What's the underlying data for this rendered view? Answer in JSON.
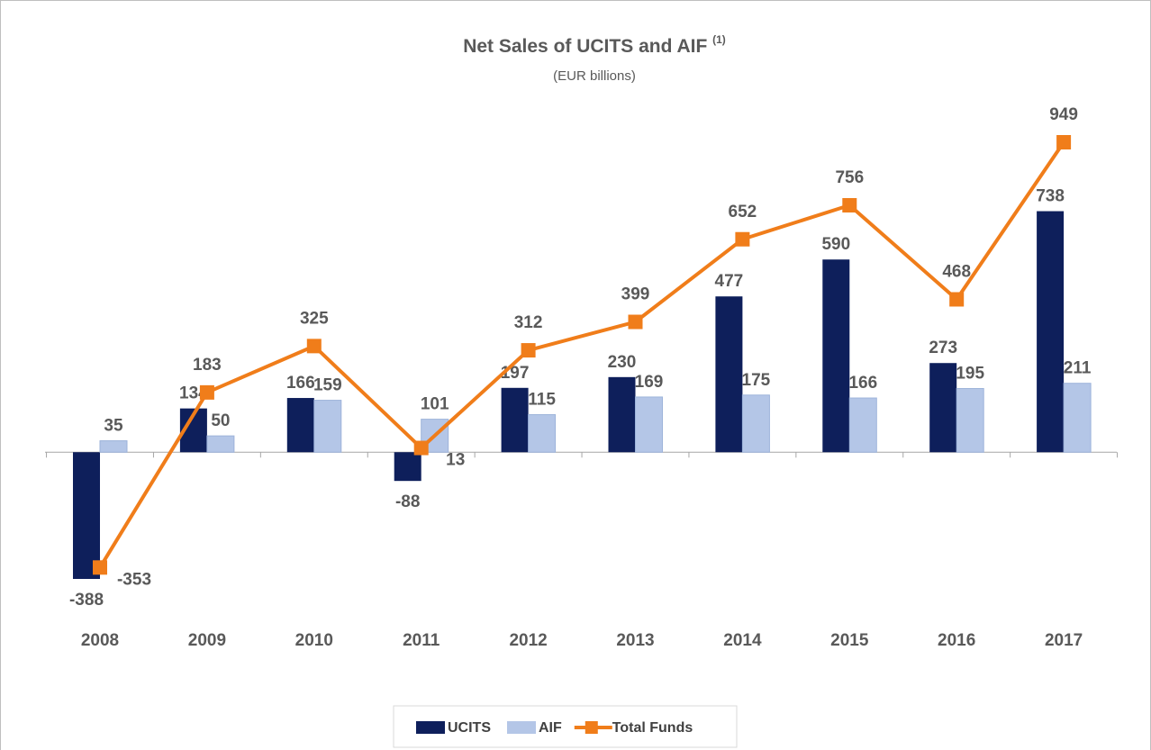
{
  "chart_data": {
    "type": "bar_line",
    "title": "Net Sales of UCITS and AIF",
    "title_note": "(1)",
    "subtitle": "(EUR billions)",
    "categories": [
      "2008",
      "2009",
      "2010",
      "2011",
      "2012",
      "2013",
      "2014",
      "2015",
      "2016",
      "2017"
    ],
    "series": [
      {
        "name": "UCITS",
        "color": "#0e1f5b",
        "kind": "bar",
        "values": [
          -388,
          134,
          166,
          -88,
          197,
          230,
          477,
          590,
          273,
          738
        ]
      },
      {
        "name": "AIF",
        "color": "#b4c6e7",
        "kind": "bar",
        "values": [
          35,
          50,
          159,
          101,
          115,
          169,
          175,
          166,
          195,
          211
        ]
      },
      {
        "name": "Total Funds",
        "color": "#f07d1a",
        "kind": "line",
        "values": [
          -353,
          183,
          325,
          13,
          312,
          399,
          652,
          756,
          468,
          949
        ]
      }
    ],
    "legend": "bottom"
  }
}
